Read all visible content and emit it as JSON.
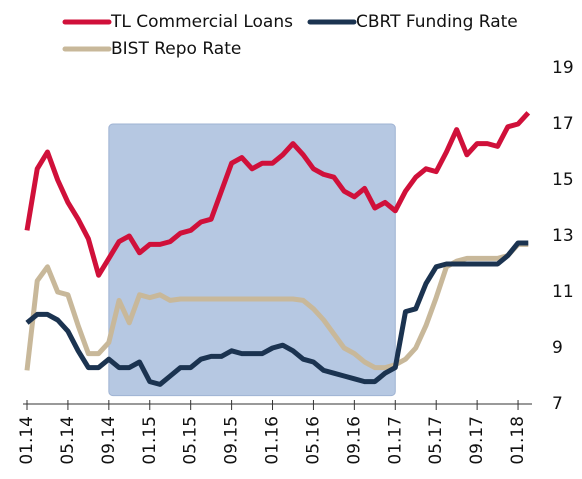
{
  "chart_data": {
    "type": "line",
    "categories": [
      "01.14",
      null,
      null,
      null,
      "05.14",
      null,
      null,
      null,
      "09.14",
      null,
      null,
      null,
      "01.15",
      null,
      null,
      null,
      "05.15",
      null,
      null,
      null,
      "09.15",
      null,
      null,
      null,
      "01.16",
      null,
      null,
      null,
      "05.16",
      null,
      null,
      null,
      "09.16",
      null,
      null,
      null,
      "01.17",
      null,
      null,
      null,
      "05.17",
      null,
      null,
      null,
      "09.17",
      null,
      null,
      null,
      "01.18",
      null
    ],
    "series": [
      {
        "name": "TL Commercial Loans",
        "color": "#d0103a",
        "values": [
          13.2,
          15.4,
          16.0,
          15.0,
          14.2,
          13.6,
          12.9,
          11.6,
          12.2,
          12.8,
          13.0,
          12.4,
          12.7,
          12.7,
          12.8,
          13.1,
          13.2,
          13.5,
          13.6,
          14.6,
          15.6,
          15.8,
          15.4,
          15.6,
          15.6,
          15.9,
          16.3,
          15.9,
          15.4,
          15.2,
          15.1,
          14.6,
          14.4,
          14.7,
          14.0,
          14.2,
          13.9,
          14.6,
          15.1,
          15.4,
          15.3,
          16.0,
          16.8,
          15.9,
          16.3,
          16.3,
          16.2,
          16.9,
          17.0,
          17.4
        ]
      },
      {
        "name": "CBRT Funding Rate",
        "color": "#1b3350",
        "values": [
          9.9,
          10.2,
          10.2,
          10.0,
          9.6,
          8.9,
          8.3,
          8.3,
          8.6,
          8.3,
          8.3,
          8.5,
          7.8,
          7.7,
          8.0,
          8.3,
          8.3,
          8.6,
          8.7,
          8.7,
          8.9,
          8.8,
          8.8,
          8.8,
          9.0,
          9.1,
          8.9,
          8.6,
          8.5,
          8.2,
          8.1,
          8.0,
          7.9,
          7.8,
          7.8,
          8.1,
          8.3,
          10.3,
          10.4,
          11.3,
          11.9,
          12.0,
          12.0,
          12.0,
          12.0,
          12.0,
          12.0,
          12.3,
          12.75,
          12.75
        ]
      },
      {
        "name": "BIST Repo Rate",
        "color": "#c8b89a",
        "values": [
          8.2,
          11.4,
          11.9,
          11.0,
          10.9,
          9.8,
          8.8,
          8.8,
          9.2,
          10.7,
          9.9,
          10.9,
          10.8,
          10.9,
          10.7,
          10.75,
          10.75,
          10.75,
          10.75,
          10.75,
          10.75,
          10.75,
          10.75,
          10.75,
          10.75,
          10.75,
          10.75,
          10.7,
          10.4,
          10.0,
          9.5,
          9.0,
          8.8,
          8.5,
          8.3,
          8.3,
          8.4,
          8.6,
          9.0,
          9.8,
          10.8,
          11.9,
          12.1,
          12.2,
          12.2,
          12.2,
          12.2,
          12.3,
          12.7,
          12.7
        ]
      }
    ],
    "shaded_x": [
      "09.14",
      "01.17"
    ],
    "shaded_y": [
      7.3,
      17
    ],
    "ylim": [
      7,
      19
    ],
    "yticks": [
      7,
      9,
      11,
      13,
      15,
      17,
      19
    ],
    "legend": "top-left"
  }
}
